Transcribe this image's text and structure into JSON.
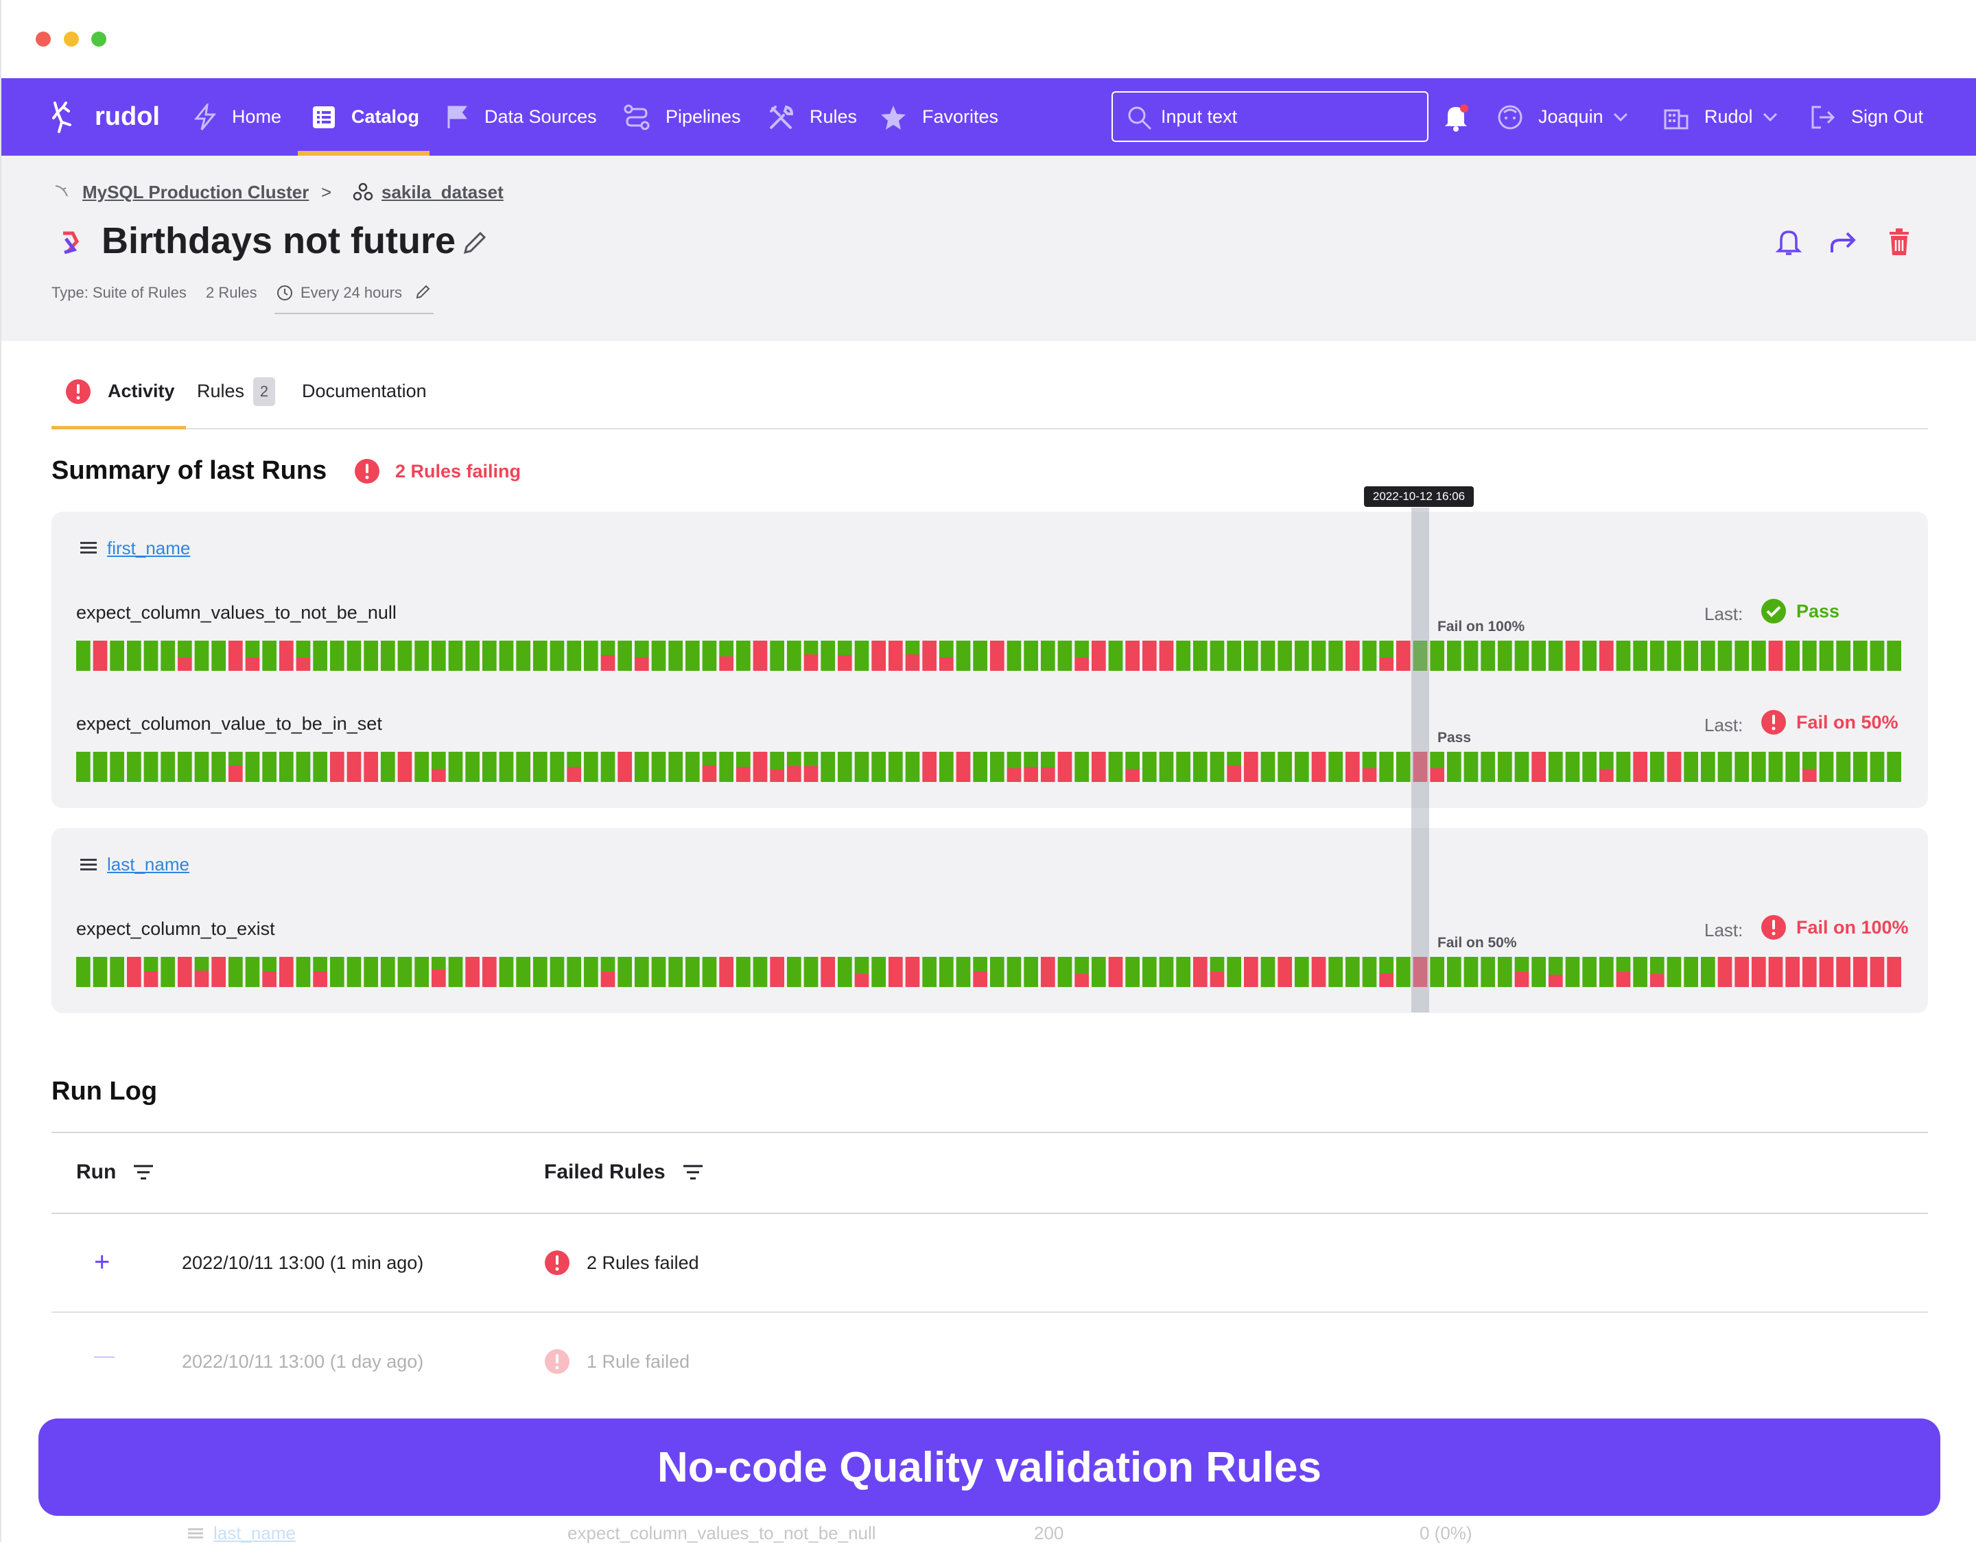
{
  "nav": {
    "brand": "rudol",
    "items": [
      {
        "label": "Home",
        "icon": "lightning-icon"
      },
      {
        "label": "Catalog",
        "icon": "catalog-icon",
        "active": true
      },
      {
        "label": "Data Sources",
        "icon": "flag-icon"
      },
      {
        "label": "Pipelines",
        "icon": "pipeline-icon"
      },
      {
        "label": "Rules",
        "icon": "tools-icon"
      },
      {
        "label": "Favorites",
        "icon": "star-icon"
      }
    ],
    "search_placeholder": "Input text",
    "user": "Joaquin",
    "org": "Rudol",
    "signout": "Sign Out"
  },
  "breadcrumb": {
    "source": "MySQL Production Cluster",
    "sep": ">",
    "dataset": "sakila_dataset"
  },
  "page": {
    "title": "Birthdays not future",
    "type": "Type: Suite of Rules",
    "rules_count": "2 Rules",
    "schedule": "Every 24 hours"
  },
  "tabs": [
    {
      "label": "Activity",
      "active": true
    },
    {
      "label": "Rules",
      "badge": "2"
    },
    {
      "label": "Documentation"
    }
  ],
  "summary": {
    "heading": "Summary of last Runs",
    "failing": "2 Rules failing",
    "tooltip": "2022-10-12 16:06",
    "last_label": "Last:",
    "columns": [
      {
        "name": "first_name",
        "rules": [
          {
            "name": "expect_column_values_to_not_be_null",
            "hover": "Fail on 100%",
            "last": "Pass",
            "last_state": "pass"
          },
          {
            "name": "expect_columon_value_to_be_in_set",
            "hover": "Pass",
            "last": "Fail on 50%",
            "last_state": "fail"
          }
        ]
      },
      {
        "name": "last_name",
        "rules": [
          {
            "name": "expect_column_to_exist",
            "hover": "Fail on 50%",
            "last": "Fail on 100%",
            "last_state": "fail"
          }
        ]
      }
    ]
  },
  "runlog": {
    "heading": "Run Log",
    "col_run": "Run",
    "col_failed": "Failed Rules",
    "rows": [
      {
        "toggle": "+",
        "date": "2022/10/11 13:00 (1 min ago)",
        "failed": "2 Rules failed"
      },
      {
        "toggle": "—",
        "date": "2022/10/11 13:00 (1 day ago)",
        "failed": "1 Rule failed"
      }
    ],
    "sub_row": {
      "col": "last_name",
      "rule": "expect_column_values_to_not_be_null",
      "count": "200",
      "failed": "0 (0%)"
    }
  },
  "banner": "No-code Quality validation Rules",
  "colors": {
    "accent": "#6b45f4",
    "pass": "#4caf0f",
    "fail": "#f04458",
    "underline": "#f2b740"
  }
}
